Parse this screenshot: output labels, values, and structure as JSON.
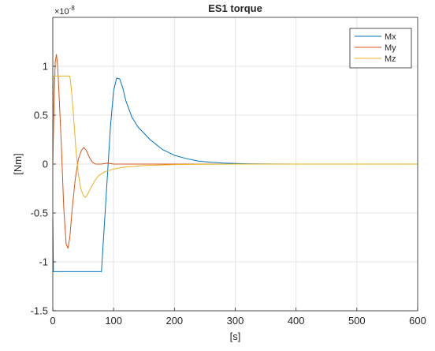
{
  "chart_data": {
    "type": "line",
    "title": "ES1 torque",
    "xlabel": "[s]",
    "ylabel": "[Nm]",
    "exponent_label": "×10",
    "exponent_power": "-8",
    "xlim": [
      0,
      600
    ],
    "ylim": [
      -1.5,
      1.5
    ],
    "x_ticks": [
      0,
      100,
      200,
      300,
      400,
      500,
      600
    ],
    "x_tick_labels": [
      "0",
      "100",
      "200",
      "300",
      "400",
      "500",
      "600"
    ],
    "y_ticks": [
      -1.5,
      -1,
      -0.5,
      0,
      0.5,
      1
    ],
    "y_tick_labels": [
      "-1.5",
      "-1",
      "-0.5",
      "0",
      "0.5",
      "1"
    ],
    "grid": true,
    "legend_position": "top-right",
    "series": [
      {
        "name": "Mx",
        "color": "#0072BD",
        "points": [
          [
            0,
            -0.55
          ],
          [
            1,
            -1.1
          ],
          [
            80,
            -1.1
          ],
          [
            85,
            -0.6
          ],
          [
            90,
            -0.1
          ],
          [
            95,
            0.4
          ],
          [
            100,
            0.75
          ],
          [
            105,
            0.88
          ],
          [
            110,
            0.87
          ],
          [
            115,
            0.78
          ],
          [
            120,
            0.65
          ],
          [
            130,
            0.48
          ],
          [
            140,
            0.38
          ],
          [
            160,
            0.25
          ],
          [
            180,
            0.15
          ],
          [
            200,
            0.09
          ],
          [
            220,
            0.055
          ],
          [
            240,
            0.03
          ],
          [
            260,
            0.018
          ],
          [
            280,
            0.01
          ],
          [
            300,
            0.006
          ],
          [
            320,
            0.003
          ],
          [
            360,
            0.001
          ],
          [
            400,
            0.0
          ],
          [
            500,
            0.0
          ],
          [
            600,
            0.0
          ]
        ]
      },
      {
        "name": "My",
        "color": "#D95319",
        "points": [
          [
            0,
            0.0
          ],
          [
            2,
            0.6
          ],
          [
            4,
            1.05
          ],
          [
            6,
            1.12
          ],
          [
            8,
            1.0
          ],
          [
            10,
            0.75
          ],
          [
            14,
            0.2
          ],
          [
            18,
            -0.45
          ],
          [
            22,
            -0.82
          ],
          [
            25,
            -0.86
          ],
          [
            28,
            -0.75
          ],
          [
            32,
            -0.45
          ],
          [
            37,
            -0.15
          ],
          [
            42,
            0.05
          ],
          [
            47,
            0.14
          ],
          [
            51,
            0.17
          ],
          [
            55,
            0.14
          ],
          [
            60,
            0.07
          ],
          [
            65,
            0.02
          ],
          [
            70,
            0.0
          ],
          [
            80,
            0.0
          ],
          [
            90,
            0.01
          ],
          [
            100,
            0.0
          ],
          [
            600,
            0.0
          ]
        ]
      },
      {
        "name": "Mz",
        "color": "#EDB120",
        "points": [
          [
            0,
            0.0
          ],
          [
            1,
            0.9
          ],
          [
            28,
            0.9
          ],
          [
            30,
            0.8
          ],
          [
            34,
            0.5
          ],
          [
            38,
            0.15
          ],
          [
            42,
            -0.1
          ],
          [
            46,
            -0.25
          ],
          [
            50,
            -0.32
          ],
          [
            54,
            -0.34
          ],
          [
            58,
            -0.3
          ],
          [
            62,
            -0.25
          ],
          [
            68,
            -0.18
          ],
          [
            75,
            -0.12
          ],
          [
            85,
            -0.08
          ],
          [
            100,
            -0.05
          ],
          [
            120,
            -0.03
          ],
          [
            150,
            -0.015
          ],
          [
            200,
            -0.005
          ],
          [
            250,
            -0.002
          ],
          [
            300,
            0.0
          ],
          [
            600,
            0.0
          ]
        ]
      }
    ]
  }
}
